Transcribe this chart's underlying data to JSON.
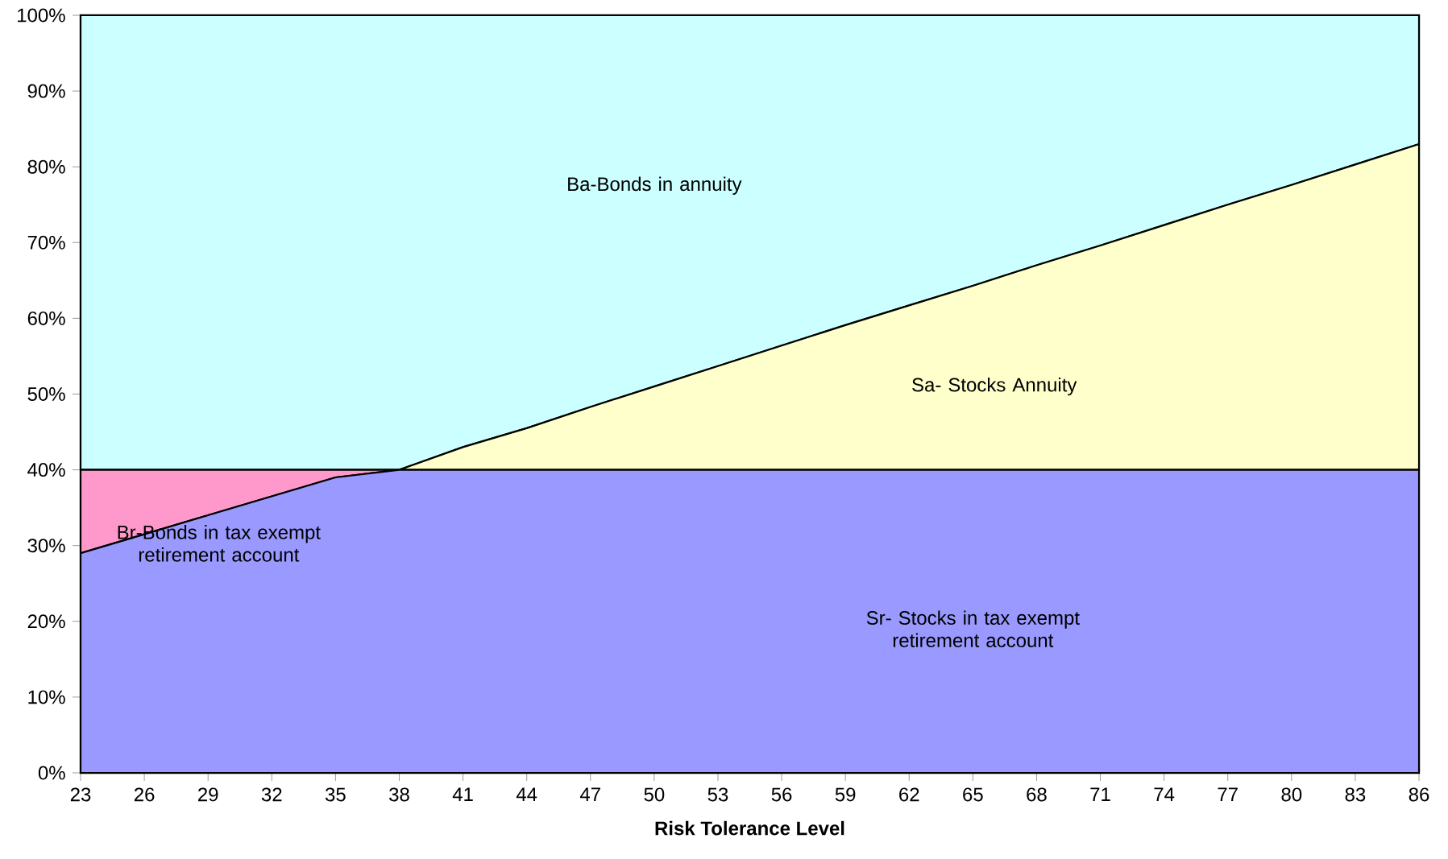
{
  "chart_data": {
    "type": "area",
    "stacked": true,
    "xlabel": "Risk Tolerance Level",
    "legend": false,
    "x": [
      23,
      26,
      29,
      32,
      35,
      38,
      41,
      44,
      47,
      50,
      53,
      56,
      59,
      62,
      65,
      68,
      71,
      74,
      77,
      80,
      83,
      86
    ],
    "xlim": [
      23,
      86
    ],
    "xticks": [
      23,
      26,
      29,
      32,
      35,
      38,
      41,
      44,
      47,
      50,
      53,
      56,
      59,
      62,
      65,
      68,
      71,
      74,
      77,
      80,
      83,
      86
    ],
    "ylim": [
      0,
      100
    ],
    "yticks": [
      {
        "value": 0,
        "label": "0%"
      },
      {
        "value": 10,
        "label": "10%"
      },
      {
        "value": 20,
        "label": "20%"
      },
      {
        "value": 30,
        "label": "30%"
      },
      {
        "value": 40,
        "label": "40%"
      },
      {
        "value": 50,
        "label": "50%"
      },
      {
        "value": 60,
        "label": "60%"
      },
      {
        "value": 70,
        "label": "70%"
      },
      {
        "value": 80,
        "label": "80%"
      },
      {
        "value": 90,
        "label": "90%"
      },
      {
        "value": 100,
        "label": "100%"
      }
    ],
    "series": [
      {
        "name": "Sr- Stocks in tax exempt retirement account",
        "color": "#9999ff",
        "values": [
          29,
          31.5,
          34,
          36.5,
          39,
          40,
          40,
          40,
          40,
          40,
          40,
          40,
          40,
          40,
          40,
          40,
          40,
          40,
          40,
          40,
          40,
          40
        ]
      },
      {
        "name": "Br-Bonds in tax exempt retirement account",
        "color": "#ff99cc",
        "values": [
          11,
          8.5,
          6,
          3.5,
          1,
          0,
          0,
          0,
          0,
          0,
          0,
          0,
          0,
          0,
          0,
          0,
          0,
          0,
          0,
          0,
          0,
          0
        ]
      },
      {
        "name": "Sa- Stocks Annuity",
        "color": "#ffffcc",
        "values": [
          0,
          0,
          0,
          0,
          0,
          0,
          3,
          5.5,
          8.3,
          11,
          13.7,
          16.4,
          19.1,
          21.7,
          24.3,
          27,
          29.6,
          32.3,
          35,
          37.6,
          40.3,
          43
        ]
      },
      {
        "name": "Ba-Bonds in annuity",
        "color": "#ccffff",
        "values": [
          60,
          60,
          60,
          60,
          60,
          60,
          57,
          54.5,
          51.7,
          49,
          46.3,
          43.6,
          40.9,
          38.3,
          35.7,
          33,
          30.4,
          27.7,
          25,
          22.4,
          19.7,
          17
        ]
      }
    ]
  }
}
